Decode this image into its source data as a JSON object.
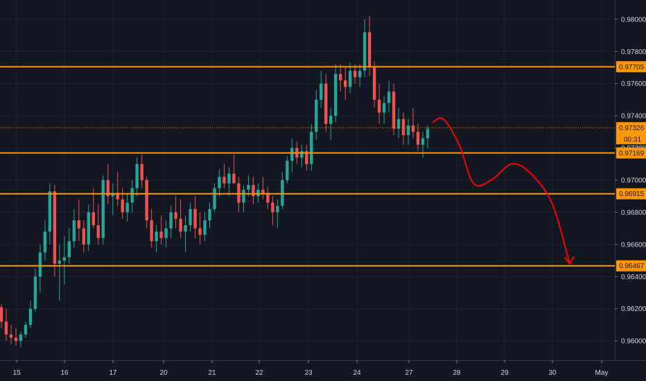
{
  "chart_data": {
    "type": "candlestick",
    "title": "",
    "xlabel": "",
    "ylabel": "",
    "ylim": [
      0.9588,
      0.9812
    ],
    "y_ticks": [
      "0.98000",
      "0.97800",
      "0.97600",
      "0.97400",
      "0.97200",
      "0.97000",
      "0.96800",
      "0.96600",
      "0.96400",
      "0.96200",
      "0.96000"
    ],
    "x_ticks": [
      "15",
      "16",
      "17",
      "20",
      "21",
      "22",
      "23",
      "24",
      "27",
      "28",
      "29",
      "30",
      "May"
    ],
    "levels": [
      {
        "value": 0.97705,
        "label": "0.97705",
        "color": "#ff9800"
      },
      {
        "value": 0.97169,
        "label": "0.97169",
        "color": "#ff9800"
      },
      {
        "value": 0.96915,
        "label": "0.96915",
        "color": "#ff9800"
      },
      {
        "value": 0.96467,
        "label": "0.96467",
        "color": "#ff9800"
      }
    ],
    "current_price": {
      "value": 0.97326,
      "label": "0.97326",
      "countdown": "00:31",
      "color": "#ff9800"
    },
    "projection": {
      "color": "#ff0000",
      "points": [
        {
          "x": 27.5,
          "y": 0.9736
        },
        {
          "x": 27.72,
          "y": 0.9738
        },
        {
          "x": 28.05,
          "y": 0.9722
        },
        {
          "x": 28.35,
          "y": 0.9698
        },
        {
          "x": 28.72,
          "y": 0.97
        },
        {
          "x": 29.15,
          "y": 0.971
        },
        {
          "x": 29.55,
          "y": 0.9704
        },
        {
          "x": 30.0,
          "y": 0.9685
        },
        {
          "x": 30.35,
          "y": 0.9648
        }
      ]
    },
    "series_ohlc": [
      [
        0.9621,
        0.9623,
        0.9608,
        0.9612
      ],
      [
        0.9612,
        0.962,
        0.96,
        0.9604
      ],
      [
        0.9604,
        0.961,
        0.9598,
        0.9602
      ],
      [
        0.9602,
        0.9608,
        0.9597,
        0.96
      ],
      [
        0.96,
        0.9606,
        0.9596,
        0.9604
      ],
      [
        0.9604,
        0.9612,
        0.9602,
        0.961
      ],
      [
        0.961,
        0.9625,
        0.9608,
        0.962
      ],
      [
        0.962,
        0.9645,
        0.9618,
        0.964
      ],
      [
        0.964,
        0.966,
        0.963,
        0.9655
      ],
      [
        0.9655,
        0.9675,
        0.965,
        0.9668
      ],
      [
        0.9668,
        0.9698,
        0.966,
        0.9693
      ],
      [
        0.9693,
        0.9697,
        0.964,
        0.9648
      ],
      [
        0.9648,
        0.966,
        0.9625,
        0.965
      ],
      [
        0.965,
        0.9665,
        0.9635,
        0.9652
      ],
      [
        0.9652,
        0.967,
        0.9648,
        0.9662
      ],
      [
        0.9662,
        0.9682,
        0.9658,
        0.9675
      ],
      [
        0.9675,
        0.9688,
        0.9662,
        0.967
      ],
      [
        0.967,
        0.9675,
        0.9655,
        0.966
      ],
      [
        0.966,
        0.9685,
        0.9656,
        0.968
      ],
      [
        0.968,
        0.9695,
        0.967,
        0.9672
      ],
      [
        0.9672,
        0.9685,
        0.966,
        0.9664
      ],
      [
        0.9664,
        0.9703,
        0.966,
        0.97
      ],
      [
        0.97,
        0.971,
        0.9685,
        0.969
      ],
      [
        0.969,
        0.9698,
        0.9678,
        0.9692
      ],
      [
        0.9692,
        0.9705,
        0.9684,
        0.9688
      ],
      [
        0.9688,
        0.9695,
        0.9676,
        0.968
      ],
      [
        0.968,
        0.9692,
        0.9674,
        0.9686
      ],
      [
        0.9686,
        0.97,
        0.968,
        0.9695
      ],
      [
        0.9695,
        0.9714,
        0.969,
        0.971
      ],
      [
        0.971,
        0.9716,
        0.9695,
        0.97
      ],
      [
        0.97,
        0.9702,
        0.967,
        0.9675
      ],
      [
        0.9675,
        0.9682,
        0.9658,
        0.9662
      ],
      [
        0.9662,
        0.9672,
        0.9655,
        0.9668
      ],
      [
        0.9668,
        0.9678,
        0.966,
        0.9664
      ],
      [
        0.9664,
        0.9675,
        0.9658,
        0.967
      ],
      [
        0.967,
        0.9684,
        0.9664,
        0.968
      ],
      [
        0.968,
        0.969,
        0.967,
        0.9676
      ],
      [
        0.9676,
        0.9688,
        0.9664,
        0.9668
      ],
      [
        0.9668,
        0.9678,
        0.9655,
        0.9672
      ],
      [
        0.9672,
        0.9686,
        0.9668,
        0.9682
      ],
      [
        0.9682,
        0.969,
        0.9664,
        0.967
      ],
      [
        0.967,
        0.968,
        0.966,
        0.9666
      ],
      [
        0.9666,
        0.968,
        0.9662,
        0.9675
      ],
      [
        0.9675,
        0.9686,
        0.967,
        0.9682
      ],
      [
        0.9682,
        0.9698,
        0.968,
        0.9695
      ],
      [
        0.9695,
        0.9707,
        0.969,
        0.9702
      ],
      [
        0.9702,
        0.971,
        0.9695,
        0.9698
      ],
      [
        0.9698,
        0.9708,
        0.969,
        0.9704
      ],
      [
        0.9704,
        0.9716,
        0.9698,
        0.9698
      ],
      [
        0.9698,
        0.9702,
        0.968,
        0.9686
      ],
      [
        0.9686,
        0.9697,
        0.968,
        0.9694
      ],
      [
        0.9694,
        0.9703,
        0.969,
        0.9697
      ],
      [
        0.9697,
        0.9702,
        0.9685,
        0.969
      ],
      [
        0.969,
        0.9698,
        0.9686,
        0.9694
      ],
      [
        0.9694,
        0.9702,
        0.9688,
        0.9692
      ],
      [
        0.9692,
        0.9696,
        0.9682,
        0.9686
      ],
      [
        0.9686,
        0.969,
        0.9672,
        0.968
      ],
      [
        0.968,
        0.9688,
        0.967,
        0.9684
      ],
      [
        0.9684,
        0.9705,
        0.9682,
        0.97
      ],
      [
        0.97,
        0.9715,
        0.9698,
        0.9712
      ],
      [
        0.9712,
        0.9726,
        0.9705,
        0.972
      ],
      [
        0.972,
        0.9724,
        0.971,
        0.9714
      ],
      [
        0.9714,
        0.9722,
        0.9708,
        0.9718
      ],
      [
        0.9718,
        0.9722,
        0.9706,
        0.971
      ],
      [
        0.971,
        0.9735,
        0.9706,
        0.973
      ],
      [
        0.973,
        0.9756,
        0.9725,
        0.975
      ],
      [
        0.975,
        0.9768,
        0.9745,
        0.976
      ],
      [
        0.976,
        0.9766,
        0.973,
        0.9735
      ],
      [
        0.9735,
        0.9745,
        0.9725,
        0.974
      ],
      [
        0.974,
        0.9772,
        0.9736,
        0.9766
      ],
      [
        0.9766,
        0.9772,
        0.9755,
        0.9762
      ],
      [
        0.9762,
        0.977,
        0.975,
        0.9758
      ],
      [
        0.9758,
        0.9773,
        0.9754,
        0.9768
      ],
      [
        0.9768,
        0.9772,
        0.976,
        0.9764
      ],
      [
        0.9764,
        0.9772,
        0.9758,
        0.9768
      ],
      [
        0.9768,
        0.98,
        0.9764,
        0.9792
      ],
      [
        0.9792,
        0.9802,
        0.9765,
        0.977
      ],
      [
        0.977,
        0.9774,
        0.9745,
        0.975
      ],
      [
        0.975,
        0.976,
        0.9735,
        0.9742
      ],
      [
        0.9742,
        0.9752,
        0.9735,
        0.9748
      ],
      [
        0.9748,
        0.9762,
        0.9742,
        0.9755
      ],
      [
        0.9755,
        0.976,
        0.9728,
        0.9732
      ],
      [
        0.9732,
        0.9745,
        0.9726,
        0.9738
      ],
      [
        0.9738,
        0.9742,
        0.9722,
        0.9728
      ],
      [
        0.9728,
        0.9738,
        0.9722,
        0.9734
      ],
      [
        0.9734,
        0.9745,
        0.9726,
        0.973
      ],
      [
        0.973,
        0.9735,
        0.9718,
        0.9722
      ],
      [
        0.9722,
        0.973,
        0.9714,
        0.9726
      ],
      [
        0.9726,
        0.9734,
        0.972,
        0.9732
      ]
    ]
  }
}
